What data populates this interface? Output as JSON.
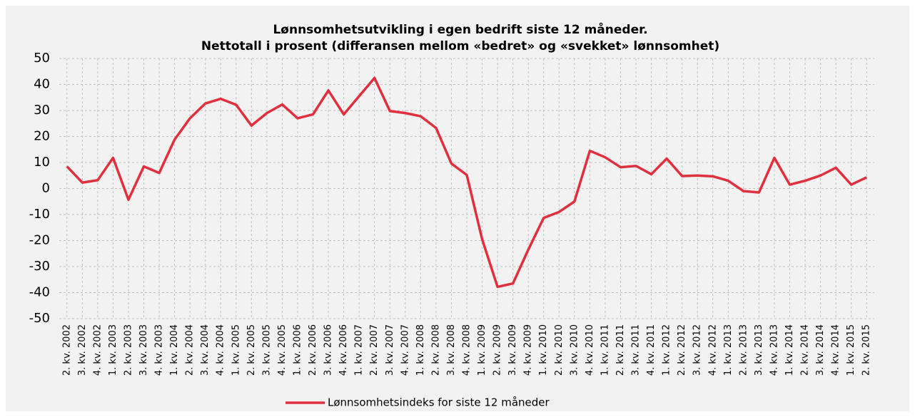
{
  "chart_data": {
    "type": "line",
    "title": "Lønnsomhetsutvikling i egen bedrift siste 12 måneder.",
    "subtitle": "Nettotall i prosent (differansen mellom «bedret» og «svekket» lønnsomhet)",
    "categories": [
      "2. kv. 2002",
      "3. kv. 2002",
      "4. kv. 2002",
      "1. kv. 2003",
      "2. kv. 2003",
      "3. kv. 2003",
      "4. kv. 2003",
      "1. kv. 2004",
      "2. kv. 2004",
      "3. kv. 2004",
      "4. kv. 2004",
      "1. kv. 2005",
      "2. kv. 2005",
      "3. kv. 2005",
      "4. kv. 2005",
      "1. kv. 2006",
      "2. kv. 2006",
      "3. kv. 2006",
      "4. kv. 2006",
      "1. kv. 2007",
      "2. kv. 2007",
      "3. kv. 2007",
      "4. kv. 2007",
      "1. kv. 2008",
      "2. kv. 2008",
      "3. kv. 2008",
      "4. kv. 2008",
      "1. kv. 2009",
      "2. kv. 2009",
      "3. kv. 2009",
      "4. kv. 2009",
      "1. kv. 2010",
      "2. kv. 2010",
      "3. kv. 2010",
      "4. kv. 2010",
      "1. kv. 2011",
      "2. kv. 2011",
      "3. kv. 2011",
      "4. kv. 2011",
      "1. kv. 2012",
      "2. kv. 2012",
      "3. kv. 2012",
      "4. kv. 2012",
      "1. kv. 2013",
      "2. kv. 2013",
      "3. kv. 2013",
      "4. kv. 2013",
      "1. kv. 2014",
      "2. kv. 2014",
      "3. kv. 2014",
      "4. kv. 2014",
      "1. kv. 2015",
      "2. kv. 2015"
    ],
    "series": [
      {
        "name": "Lønnsomhetsindeks for siste 12 måneder",
        "color": "#e0303e",
        "values": [
          8.5,
          2.3,
          3.2,
          11.8,
          -4.3,
          8.5,
          6,
          18.8,
          27,
          32.7,
          34.5,
          32.2,
          24.2,
          29,
          32.3,
          27,
          28.5,
          37.7,
          28.5,
          35.5,
          42.5,
          29.8,
          29,
          27.8,
          23.3,
          9.6,
          5.2,
          -19.5,
          -37.8,
          -36.5,
          -23.5,
          -11.3,
          -9,
          -5,
          14.5,
          12,
          8.2,
          8.7,
          5.5,
          11.5,
          4.8,
          5,
          4.7,
          3,
          -1,
          -1.5,
          11.8,
          1.5,
          3,
          5,
          8,
          1.5,
          4.3
        ]
      }
    ],
    "ylim": [
      -50,
      50
    ],
    "yticks": [
      -50,
      -40,
      -30,
      -20,
      -10,
      0,
      10,
      20,
      30,
      40,
      50
    ],
    "grid": true,
    "legend": "bottom"
  }
}
